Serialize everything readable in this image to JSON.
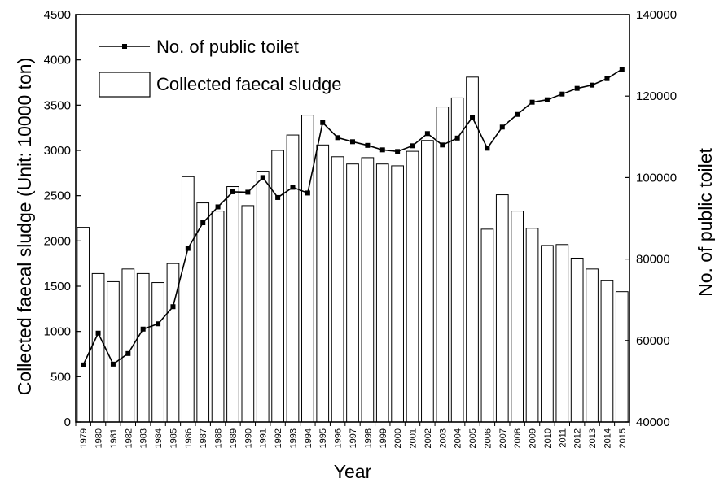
{
  "chart_data": {
    "type": "bar",
    "categories": [
      "1979",
      "1980",
      "1981",
      "1982",
      "1983",
      "1984",
      "1985",
      "1986",
      "1987",
      "1988",
      "1989",
      "1990",
      "1991",
      "1992",
      "1993",
      "1994",
      "1995",
      "1996",
      "1997",
      "1998",
      "1999",
      "2000",
      "2001",
      "2002",
      "2003",
      "2004",
      "2005",
      "2006",
      "2007",
      "2008",
      "2009",
      "2010",
      "2011",
      "2012",
      "2013",
      "2014",
      "2015"
    ],
    "xlabel": "Year",
    "ylabel_left": "Collected faecal sludge (Unit: 10000 ton)",
    "ylabel_right": "No. of public toilet",
    "ylim_left": [
      0,
      4500
    ],
    "ylim_right": [
      40000,
      140000
    ],
    "yticks_left": [
      "0",
      "500",
      "1000",
      "1500",
      "2000",
      "2500",
      "3000",
      "3500",
      "4000",
      "4500"
    ],
    "yticks_right": [
      "40000",
      "60000",
      "80000",
      "100000",
      "120000",
      "140000"
    ],
    "legend_position": "top-left",
    "grid": false,
    "series": [
      {
        "name": "Collected faecal sludge",
        "type": "bar",
        "axis": "left",
        "values": [
          2150,
          1640,
          1550,
          1690,
          1640,
          1540,
          1750,
          2710,
          2420,
          2330,
          2600,
          2390,
          2770,
          3000,
          3170,
          3390,
          3060,
          2930,
          2850,
          2920,
          2850,
          2830,
          2990,
          3110,
          3480,
          3580,
          3810,
          2130,
          2510,
          2330,
          2140,
          1950,
          1960,
          1810,
          1690,
          1560,
          1440
        ]
      },
      {
        "name": "No. of public toilet",
        "type": "line",
        "axis": "right",
        "color": "#000000",
        "values": [
          54000,
          61800,
          54200,
          56800,
          62800,
          64100,
          68300,
          82600,
          88900,
          92800,
          96500,
          96400,
          100000,
          95100,
          97600,
          96200,
          113500,
          109800,
          108800,
          107900,
          106800,
          106400,
          107800,
          110800,
          108000,
          109700,
          114800,
          107200,
          112400,
          115500,
          118500,
          119100,
          120500,
          121900,
          122700,
          124300,
          126600
        ]
      }
    ]
  }
}
